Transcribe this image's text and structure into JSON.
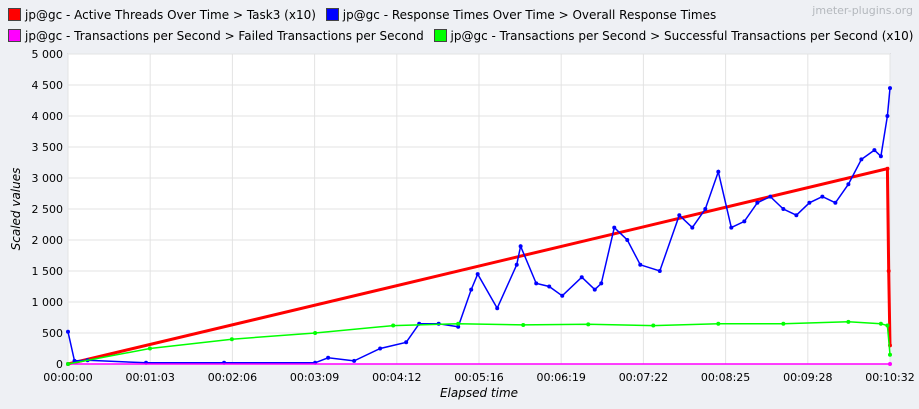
{
  "watermark": "jmeter-plugins.org",
  "chart_data": {
    "type": "line",
    "title": "",
    "xlabel": "Elapsed time",
    "ylabel": "Scaled values",
    "ylim": [
      0,
      5000
    ],
    "y_ticks": [
      "0",
      "500",
      "1 000",
      "1 500",
      "2 000",
      "2 500",
      "3 000",
      "3 500",
      "4 000",
      "4 500",
      "5 000"
    ],
    "x_tick_labels": [
      "00:00:00",
      "00:01:03",
      "00:02:06",
      "00:03:09",
      "00:04:12",
      "00:05:16",
      "00:06:19",
      "00:07:22",
      "00:08:25",
      "00:09:28",
      "00:10:32"
    ],
    "x_unit": "seconds",
    "xlim": [
      0,
      632
    ],
    "grid": true,
    "legend_position": "top",
    "series": [
      {
        "name": "jp@gc - Active Threads Over Time > Task3 (x10)",
        "color": "#ff0000",
        "x": [
          0,
          630,
          631,
          632
        ],
        "y": [
          0,
          3150,
          1500,
          300
        ]
      },
      {
        "name": "jp@gc - Response Times Over Time > Overall Response Times",
        "color": "#0000ff",
        "x": [
          0,
          5,
          15,
          60,
          120,
          190,
          200,
          220,
          240,
          260,
          270,
          285,
          300,
          310,
          315,
          330,
          345,
          348,
          360,
          370,
          380,
          395,
          405,
          410,
          420,
          430,
          440,
          455,
          470,
          480,
          490,
          500,
          510,
          520,
          530,
          540,
          550,
          560,
          570,
          580,
          590,
          600,
          610,
          620,
          625,
          630,
          632
        ],
        "y": [
          520,
          50,
          60,
          20,
          20,
          20,
          100,
          50,
          250,
          350,
          650,
          650,
          600,
          1200,
          1450,
          900,
          1600,
          1900,
          1300,
          1250,
          1100,
          1400,
          1200,
          1300,
          2200,
          2000,
          1600,
          1500,
          2400,
          2200,
          2500,
          3100,
          2200,
          2300,
          2600,
          2700,
          2500,
          2400,
          2600,
          2700,
          2600,
          2900,
          3300,
          3450,
          3350,
          4000,
          4450
        ]
      },
      {
        "name": "jp@gc - Transactions per Second > Failed Transactions per Second",
        "color": "#ff00ff",
        "x": [
          0,
          632
        ],
        "y": [
          0,
          0
        ]
      },
      {
        "name": "jp@gc - Transactions per Second > Successful Transactions per Second (x10)",
        "color": "#00ff00",
        "x": [
          0,
          63,
          126,
          190,
          250,
          300,
          350,
          400,
          450,
          500,
          550,
          600,
          625,
          630,
          632
        ],
        "y": [
          0,
          250,
          400,
          500,
          620,
          650,
          630,
          640,
          620,
          650,
          650,
          680,
          650,
          620,
          150
        ]
      }
    ]
  }
}
